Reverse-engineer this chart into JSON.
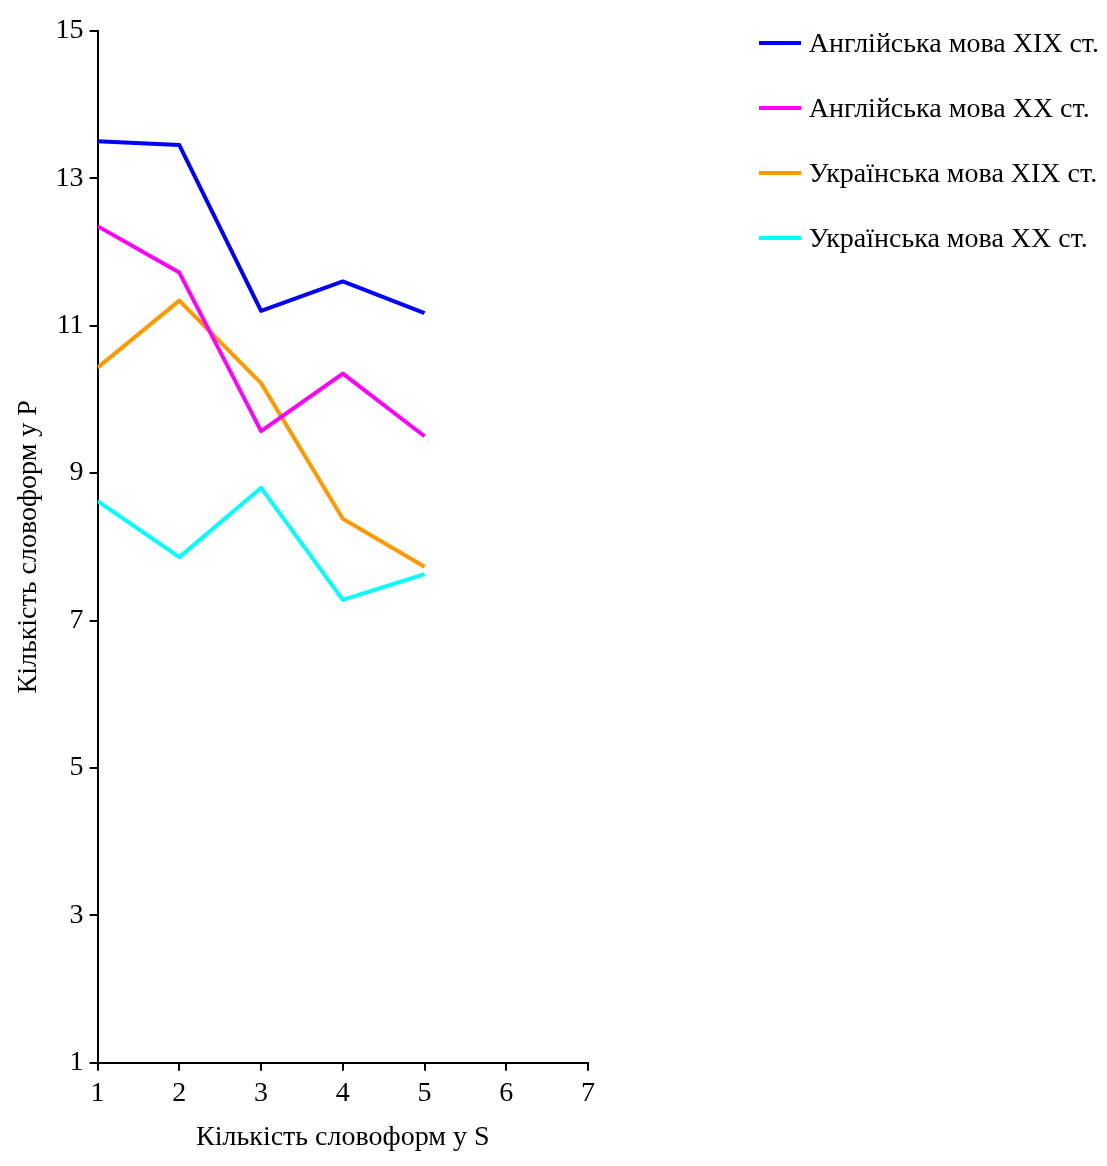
{
  "chart_data": {
    "type": "line",
    "xlabel": "Кількість словоформ у S",
    "ylabel": "Кількість словоформ у P",
    "x": [
      1,
      2,
      3,
      4,
      5
    ],
    "xlim": [
      1,
      7
    ],
    "xticks": [
      1,
      2,
      3,
      4,
      5,
      6,
      7
    ],
    "ylim": [
      1,
      15
    ],
    "yticks": [
      1,
      3,
      5,
      7,
      9,
      11,
      13,
      15
    ],
    "grid": false,
    "legend": "top right",
    "marker": "none",
    "line_style": "solid",
    "series": [
      {
        "name": "Англійська мова XIX ст.",
        "color": "#0000ff",
        "values": [
          13.5,
          13.45,
          11.2,
          11.6,
          11.17
        ]
      },
      {
        "name": "Англійська мова XX ст.",
        "color": "#ff00ff",
        "values": [
          12.35,
          11.72,
          9.57,
          10.35,
          9.5
        ]
      },
      {
        "name": "Українська мова XIX ст.",
        "color": "#ff9900",
        "values": [
          10.43,
          11.34,
          10.22,
          8.38,
          7.73
        ]
      },
      {
        "name": "Українська мова XX ст.",
        "color": "#00ffff",
        "values": [
          8.62,
          7.86,
          8.8,
          7.28,
          7.63
        ]
      }
    ]
  }
}
